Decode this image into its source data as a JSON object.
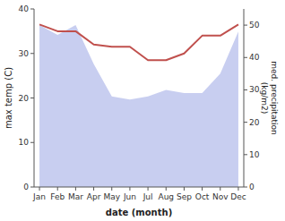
{
  "chart_data": {
    "type": "line",
    "categories": [
      "Jan",
      "Feb",
      "Mar",
      "Apr",
      "May",
      "Jun",
      "Jul",
      "Aug",
      "Sep",
      "Oct",
      "Nov",
      "Dec"
    ],
    "xlabel": "date (month)",
    "ylabel": "max temp (C)",
    "y2label": "med. precipitation\n(kg/m2)",
    "series": [
      {
        "type": "area",
        "axis": "y2",
        "color": "#aab4e8",
        "values": [
          50,
          47,
          50,
          38,
          28,
          27,
          28,
          30,
          29,
          29,
          35,
          48
        ]
      },
      {
        "type": "line",
        "color": "#c0504d",
        "values": [
          36.5,
          35,
          35,
          32,
          31.5,
          31.5,
          28.5,
          28.5,
          30,
          34,
          34,
          36.5
        ]
      }
    ],
    "ylim": [
      0,
      40
    ],
    "yticks": [
      0,
      10,
      20,
      30,
      40
    ],
    "y2lim": [
      0,
      55
    ],
    "y2ticks": [
      0,
      10,
      20,
      30,
      40,
      50
    ]
  }
}
